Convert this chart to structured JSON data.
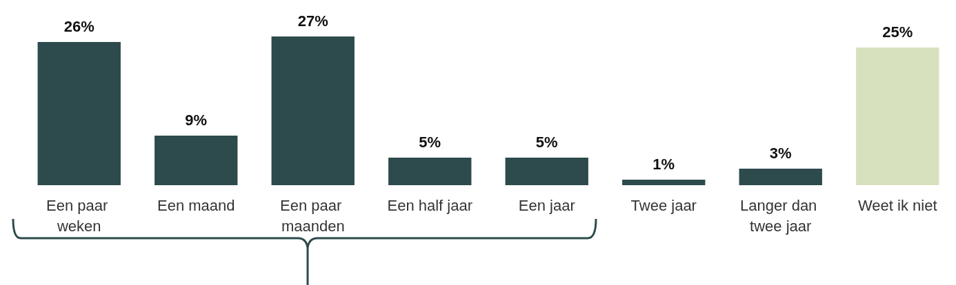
{
  "chart_data": {
    "type": "bar",
    "categories": [
      "Een paar weken",
      "Een maand",
      "Een paar maanden",
      "Een half jaar",
      "Een jaar",
      "Twee jaar",
      "Langer dan twee jaar",
      "Weet ik niet"
    ],
    "values": [
      26,
      9,
      27,
      5,
      5,
      1,
      3,
      25
    ],
    "colors": [
      "#2d4a4c",
      "#2d4a4c",
      "#2d4a4c",
      "#2d4a4c",
      "#2d4a4c",
      "#2d4a4c",
      "#2d4a4c",
      "#d7e1bd"
    ],
    "value_labels": [
      "26%",
      "9%",
      "27%",
      "5%",
      "5%",
      "1%",
      "3%",
      "25%"
    ]
  }
}
